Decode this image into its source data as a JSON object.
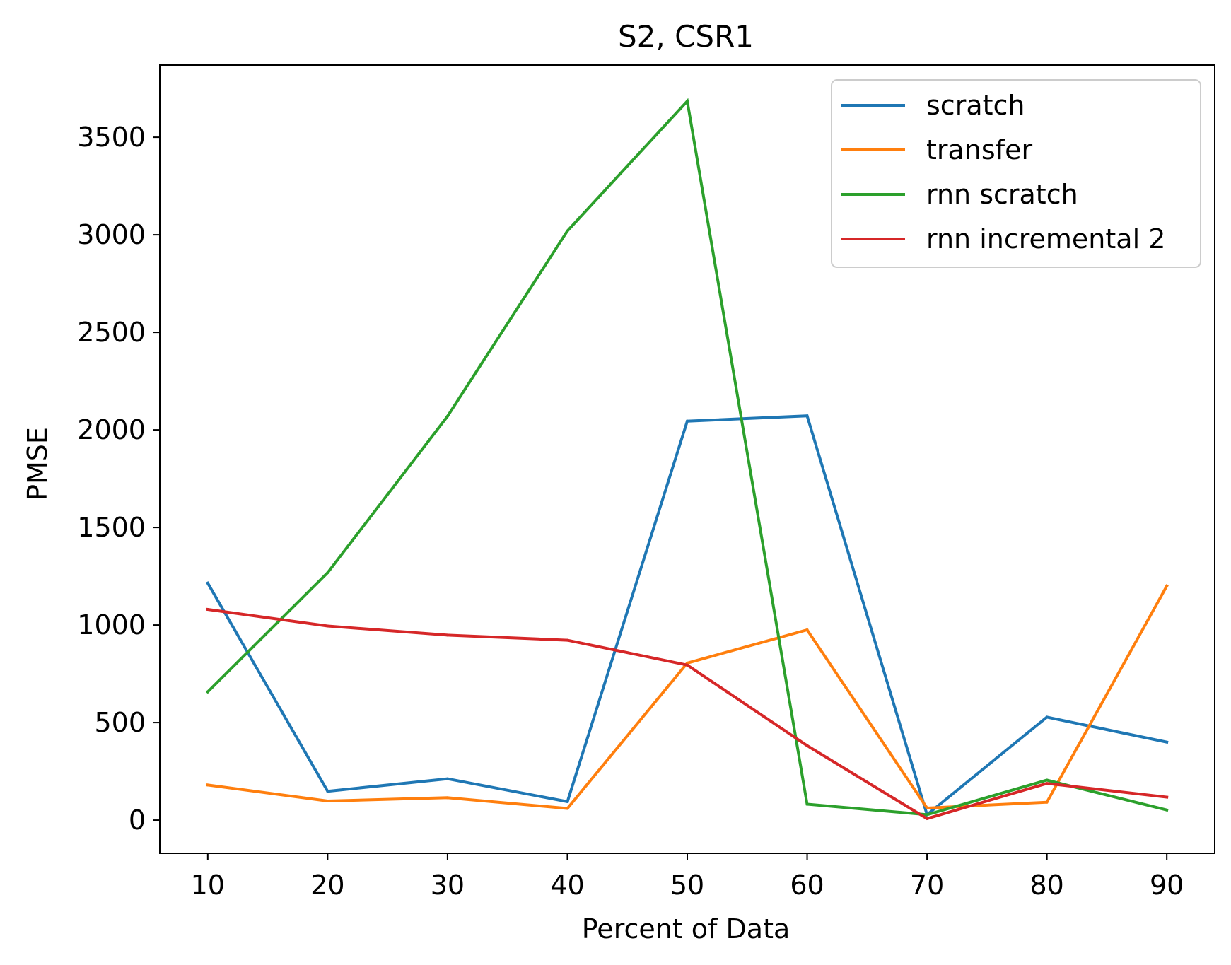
{
  "chart_data": {
    "type": "line",
    "title": "S2, CSR1",
    "xlabel": "Percent of Data",
    "ylabel": "PMSE",
    "x": [
      10,
      20,
      30,
      40,
      50,
      60,
      70,
      80,
      90
    ],
    "xticks": [
      10,
      20,
      30,
      40,
      50,
      60,
      70,
      80,
      90
    ],
    "yticks": [
      0,
      500,
      1000,
      1500,
      2000,
      2500,
      3000,
      3500
    ],
    "xlim": [
      6,
      94
    ],
    "ylim": [
      -170,
      3870
    ],
    "grid": false,
    "legend_position": "upper right",
    "series": [
      {
        "name": "scratch",
        "color": "#1f77b4",
        "values": [
          1215,
          148,
          212,
          95,
          2045,
          2072,
          28,
          528,
          400
        ]
      },
      {
        "name": "transfer",
        "color": "#ff7f0e",
        "values": [
          180,
          98,
          115,
          60,
          805,
          975,
          62,
          92,
          1200
        ]
      },
      {
        "name": "rnn scratch",
        "color": "#2ca02c",
        "values": [
          658,
          1268,
          2070,
          3020,
          3685,
          82,
          28,
          205,
          52
        ]
      },
      {
        "name": "rnn incremental 2",
        "color": "#d62728",
        "values": [
          1080,
          995,
          948,
          922,
          795,
          382,
          8,
          188,
          118
        ]
      }
    ]
  }
}
